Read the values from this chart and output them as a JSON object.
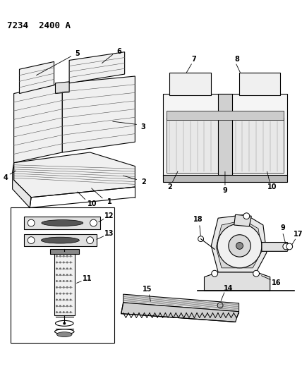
{
  "title": "7234  2400 A",
  "background": "#ffffff",
  "fig_width": 4.28,
  "fig_height": 5.33,
  "dpi": 100
}
